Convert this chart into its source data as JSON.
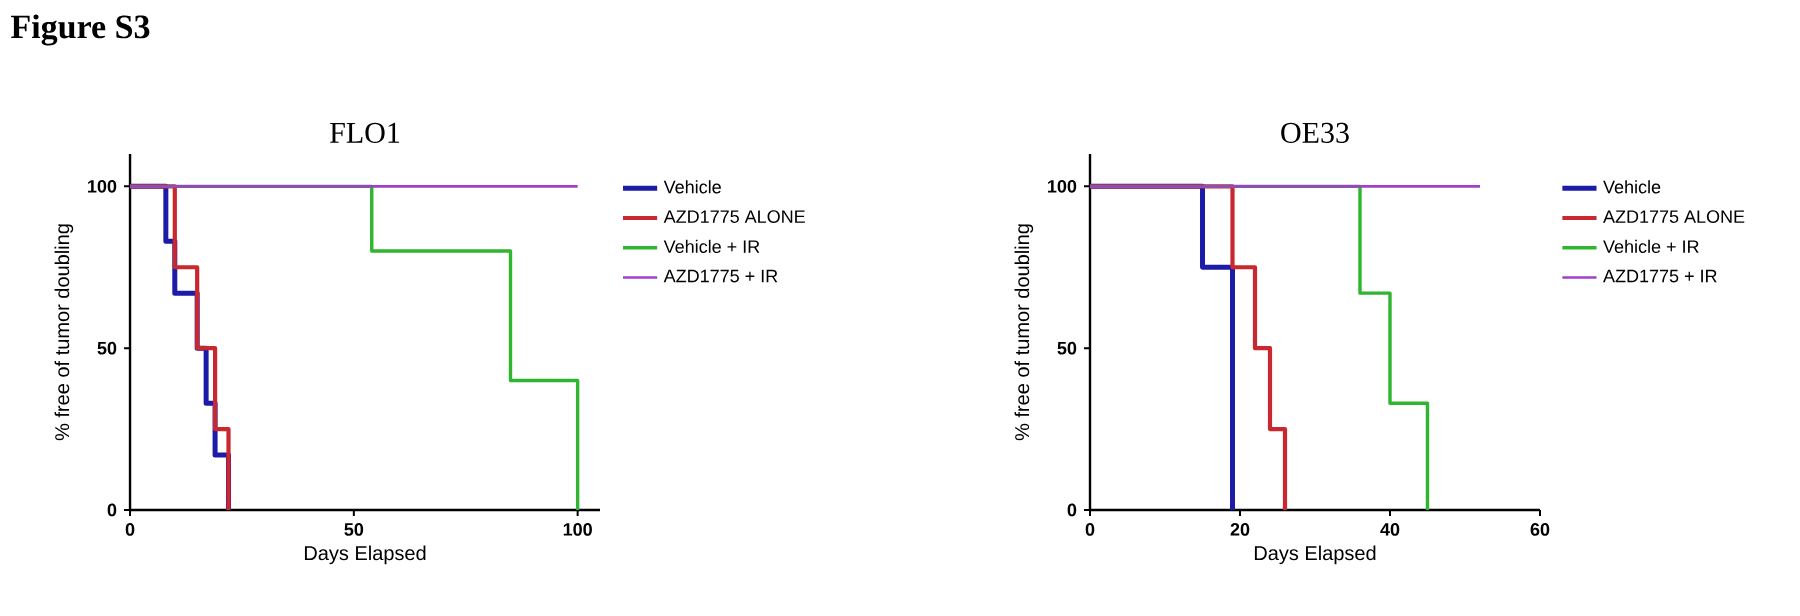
{
  "chart_data": [
    {
      "type": "step",
      "title": "FLO1",
      "annotations": [
        "Figure S3"
      ],
      "xlabel": "Days Elapsed",
      "ylabel": "% free of tumor doubling",
      "xlim": [
        0,
        105
      ],
      "xticks": [
        0,
        50,
        100
      ],
      "ylim": [
        0,
        110
      ],
      "yticks": [
        0,
        50,
        100
      ],
      "legend": "right",
      "series": [
        {
          "name": "Vehicle",
          "color": "#1c1ca8",
          "x": [
            0,
            8,
            10,
            15,
            17,
            19,
            22
          ],
          "values": [
            100,
            83,
            67,
            50,
            33,
            17,
            0
          ]
        },
        {
          "name": "AZD1775 ALONE",
          "color": "#c8282e",
          "x": [
            0,
            10,
            15,
            19,
            22
          ],
          "values": [
            100,
            75,
            50,
            25,
            0
          ]
        },
        {
          "name": "Vehicle + IR",
          "color": "#2fb52f",
          "x": [
            0,
            54,
            85,
            100
          ],
          "values": [
            100,
            80,
            40,
            0
          ]
        },
        {
          "name": "AZD1775 + IR",
          "color": "#a040c8",
          "x": [
            0,
            100
          ],
          "values": [
            100,
            100
          ]
        }
      ]
    },
    {
      "type": "step",
      "title": "OE33",
      "xlabel": "Days Elapsed",
      "ylabel": "% free of tumor doubling",
      "xlim": [
        0,
        60
      ],
      "xticks": [
        0,
        20,
        40,
        60
      ],
      "ylim": [
        0,
        110
      ],
      "yticks": [
        0,
        50,
        100
      ],
      "legend": "right",
      "series": [
        {
          "name": "Vehicle",
          "color": "#1c1ca8",
          "x": [
            0,
            15,
            19
          ],
          "values": [
            100,
            75,
            0
          ]
        },
        {
          "name": "AZD1775 ALONE",
          "color": "#c8282e",
          "x": [
            0,
            19,
            22,
            24,
            26
          ],
          "values": [
            100,
            75,
            50,
            25,
            0
          ]
        },
        {
          "name": "Vehicle + IR",
          "color": "#2fb52f",
          "x": [
            0,
            36,
            40,
            45
          ],
          "values": [
            100,
            67,
            33,
            0
          ]
        },
        {
          "name": "AZD1775 + IR",
          "color": "#a040c8",
          "x": [
            0,
            52
          ],
          "values": [
            100,
            100
          ]
        }
      ]
    }
  ]
}
